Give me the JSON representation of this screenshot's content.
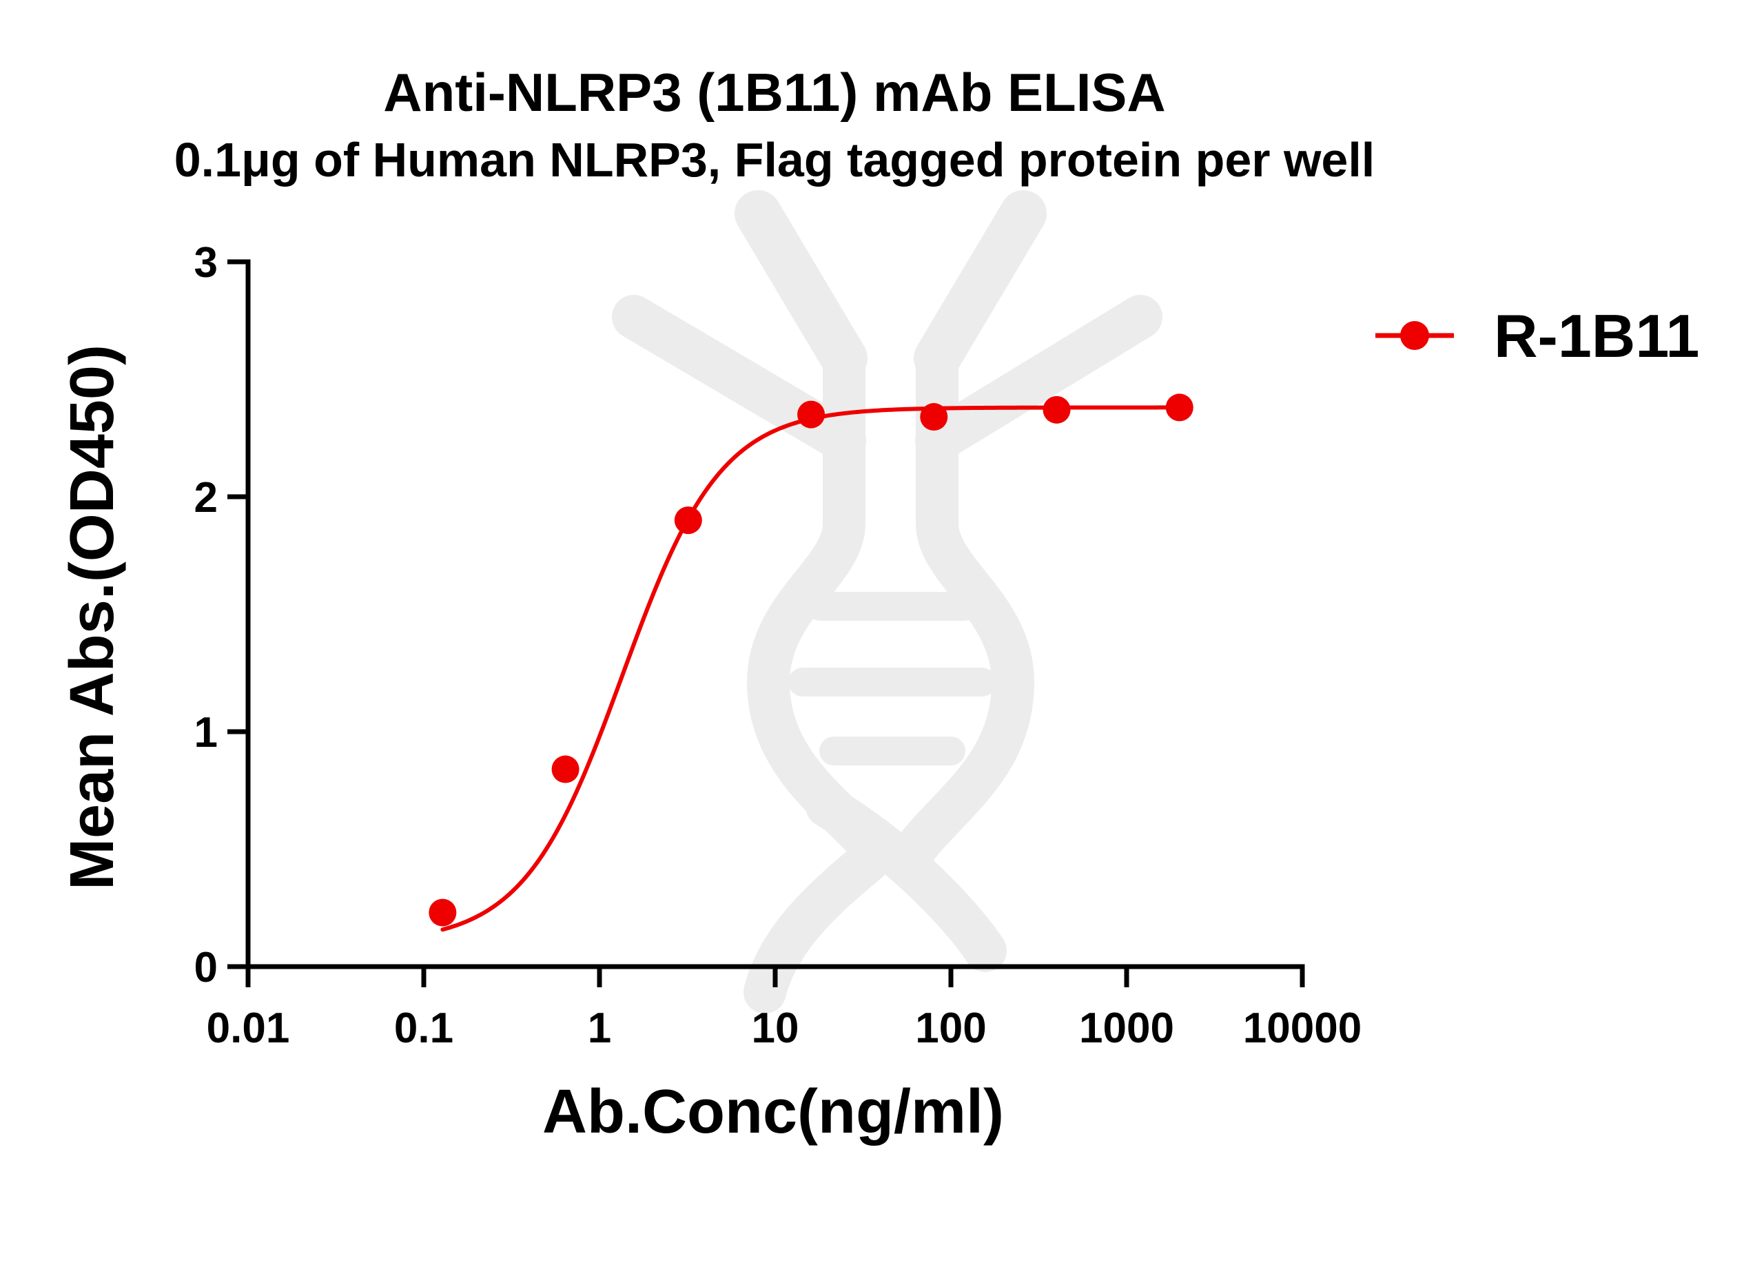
{
  "chart_data": {
    "type": "line",
    "title": "Anti-NLRP3 (1B11) mAb ELISA",
    "subtitle": "0.1μg of Human NLRP3, Flag tagged protein per well",
    "xlabel": "Ab.Conc(ng/ml)",
    "ylabel": "Mean Abs.(OD450)",
    "x_scale": "log",
    "xlim": [
      0.01,
      10000
    ],
    "ylim": [
      0,
      3
    ],
    "x_ticks": [
      0.01,
      0.1,
      1,
      10,
      100,
      1000,
      10000
    ],
    "x_tick_labels": [
      "0.01",
      "0.1",
      "1",
      "10",
      "100",
      "1000",
      "10000"
    ],
    "y_ticks": [
      0,
      1,
      2,
      3
    ],
    "y_tick_labels": [
      "0",
      "1",
      "2",
      "3"
    ],
    "grid": false,
    "legend_position": "top-right",
    "series": [
      {
        "name": "R-1B11",
        "color": "#ee0000",
        "marker": "circle",
        "x": [
          0.128,
          0.64,
          3.2,
          16,
          80,
          400,
          2000
        ],
        "y": [
          0.23,
          0.84,
          1.9,
          2.35,
          2.34,
          2.37,
          2.38
        ],
        "fit": {
          "model": "four-parameter logistic",
          "bottom": 0.1,
          "top": 2.38,
          "ec50": 1.35,
          "hill": 1.55
        }
      }
    ]
  }
}
